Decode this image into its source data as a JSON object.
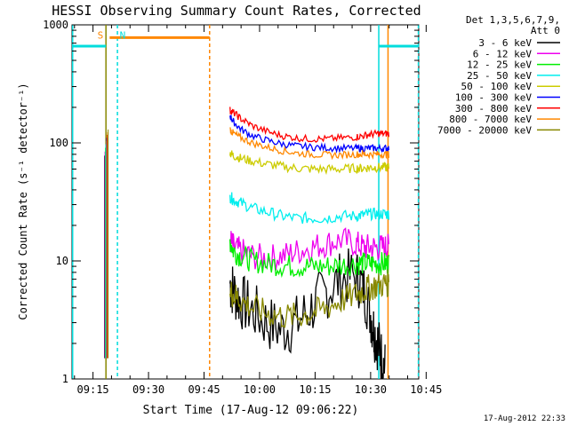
{
  "chart_data": {
    "type": "line",
    "title": "HESSI Observing Summary Count Rates, Corrected",
    "xlabel": "Start Time (17-Aug-12 09:06:22)",
    "ylabel": "Corrected Count Rate (s⁻¹ detector⁻¹)",
    "yscale": "log",
    "ylim": [
      1,
      1000
    ],
    "xlim_minutes": [
      9.33,
      103.0
    ],
    "x_tick_labels": [
      "09:15",
      "09:30",
      "09:45",
      "10:00",
      "10:15",
      "10:30",
      "10:45"
    ],
    "x_tick_minutes": [
      15,
      30,
      45,
      60,
      75,
      90,
      105
    ],
    "y_tick_labels": [
      "1",
      "10",
      "100",
      "1000"
    ],
    "y_tick_values": [
      1,
      10,
      100,
      1000
    ],
    "legend_header": [
      "Det 1,3,5,6,7,9,",
      "Att 0"
    ],
    "legend_position": "right",
    "series": [
      {
        "name": "3 - 6 keV",
        "color": "#000000",
        "x": [
          52,
          53,
          55,
          58,
          62,
          66,
          70,
          74,
          78,
          82,
          86,
          88,
          90,
          91,
          92,
          93,
          94
        ],
        "values": [
          6.5,
          5.5,
          4.5,
          3.8,
          3.0,
          2.6,
          3.0,
          4.0,
          5.5,
          7.0,
          7.5,
          6.0,
          3.5,
          2.5,
          2.0,
          1.5,
          1.2
        ]
      },
      {
        "name": "6 - 12 keV",
        "color": "#ee00ee",
        "x": [
          52,
          53,
          55,
          58,
          62,
          66,
          70,
          74,
          78,
          82,
          86,
          88,
          90,
          92,
          94,
          95
        ],
        "values": [
          15,
          13,
          12,
          11,
          10.5,
          11,
          12,
          13,
          14,
          15,
          14,
          13,
          13,
          13,
          13,
          13
        ]
      },
      {
        "name": "12 - 25 keV",
        "color": "#00ee00",
        "x": [
          52,
          53,
          55,
          58,
          62,
          66,
          70,
          74,
          78,
          82,
          86,
          88,
          90,
          92,
          94,
          95
        ],
        "values": [
          15,
          12,
          11,
          10,
          9.5,
          9.2,
          9.0,
          9.0,
          9.0,
          9.2,
          9.5,
          9.5,
          9.5,
          9.5,
          9.5,
          9.5
        ]
      },
      {
        "name": "25 - 50 keV",
        "color": "#00eeee",
        "x": [
          52,
          53,
          55,
          58,
          62,
          66,
          70,
          74,
          78,
          82,
          86,
          88,
          90,
          92,
          94,
          95
        ],
        "values": [
          35,
          33,
          31,
          28,
          26,
          24,
          23,
          23,
          23,
          24,
          24,
          24.5,
          25,
          25,
          25,
          25
        ]
      },
      {
        "name": "50 - 100 keV",
        "color": "#cccc00",
        "x": [
          52,
          53,
          55,
          58,
          62,
          66,
          70,
          74,
          78,
          82,
          86,
          88,
          90,
          92,
          94,
          95
        ],
        "values": [
          82,
          78,
          74,
          70,
          66,
          63,
          61,
          60,
          60,
          60,
          61,
          61,
          62,
          62,
          62,
          62
        ]
      },
      {
        "name": "100 - 300 keV",
        "color": "#0000ff",
        "x": [
          52,
          53,
          55,
          58,
          62,
          66,
          70,
          74,
          78,
          82,
          86,
          88,
          90,
          92,
          94,
          95
        ],
        "values": [
          170,
          150,
          130,
          115,
          105,
          98,
          94,
          92,
          91,
          90,
          90,
          90,
          90,
          90,
          90,
          90
        ]
      },
      {
        "name": "300 - 800 keV",
        "color": "#ff0000",
        "x": [
          52,
          53,
          55,
          58,
          62,
          66,
          70,
          74,
          78,
          82,
          86,
          88,
          90,
          92,
          94,
          95
        ],
        "values": [
          190,
          180,
          160,
          140,
          125,
          115,
          110,
          108,
          108,
          110,
          112,
          115,
          118,
          120,
          120,
          120
        ]
      },
      {
        "name": "800 - 7000 keV",
        "color": "#ff8800",
        "x": [
          52,
          53,
          55,
          58,
          62,
          66,
          70,
          74,
          78,
          82,
          86,
          88,
          90,
          92,
          94,
          95
        ],
        "values": [
          130,
          120,
          110,
          100,
          92,
          86,
          82,
          80,
          79,
          79,
          80,
          80,
          80,
          80,
          80,
          80
        ]
      },
      {
        "name": "7000 - 20000 keV",
        "color": "#888800",
        "x": [
          52,
          53,
          55,
          58,
          62,
          66,
          70,
          74,
          78,
          82,
          86,
          88,
          90,
          92,
          94,
          95
        ],
        "values": [
          5.5,
          5.2,
          4.6,
          4.0,
          3.6,
          3.4,
          3.4,
          3.6,
          4.0,
          4.6,
          5.2,
          5.6,
          6.0,
          6.2,
          6.4,
          6.5
        ]
      }
    ],
    "spikes": {
      "x": 18.6,
      "low": 1.5,
      "high": 130
    },
    "vertical_lines": [
      {
        "x": 9.5,
        "color": "#00dddd",
        "dash": false
      },
      {
        "x": 18.5,
        "color": "#888800",
        "dash": false
      },
      {
        "x": 21.6,
        "color": "#00dddd",
        "dash": true
      },
      {
        "x": 46.5,
        "color": "#ff8800",
        "dash": true
      },
      {
        "x": 92.2,
        "color": "#00dddd",
        "dash": false
      },
      {
        "x": 94.7,
        "color": "#ff8800",
        "dash": false
      },
      {
        "x": 102.9,
        "color": "#00dddd",
        "dash": true
      }
    ],
    "flag_bars": [
      {
        "label": "",
        "color": "#00dddd",
        "y": 660,
        "segments": [
          [
            9.5,
            18.5
          ],
          [
            92.2,
            102.9
          ]
        ]
      },
      {
        "label": "S",
        "color": "#ff8800",
        "y": 780,
        "segments": [
          [
            19.5,
            46.5
          ]
        ]
      },
      {
        "label": "N",
        "color": "#00dddd",
        "y": 0,
        "segments": []
      }
    ],
    "flag_labels": [
      {
        "text": "S",
        "color": "#ff8800",
        "x": 17.0,
        "y": 820
      },
      {
        "text": "N",
        "color": "#00dddd",
        "x": 23.0,
        "y": 820
      }
    ],
    "grid": false
  },
  "footer": {
    "timestamp": "17-Aug-2012 22:33"
  }
}
